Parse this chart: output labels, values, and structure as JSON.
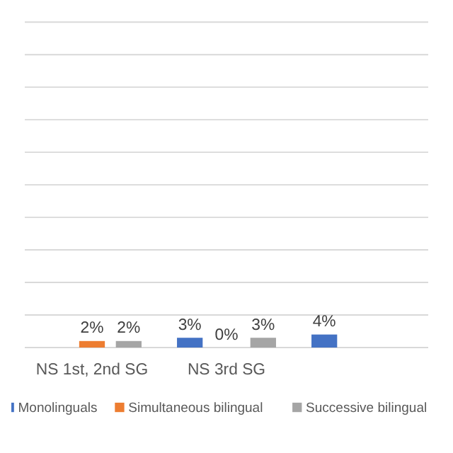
{
  "chart_data": {
    "type": "bar",
    "categories": [
      "NS 1st, 2nd SG",
      "NS 3rd SG",
      null
    ],
    "series": [
      {
        "name": "Monolinguals",
        "color": "#4472c4",
        "values": [
          null,
          3,
          4
        ],
        "value_labels": [
          null,
          "3%",
          "4%"
        ]
      },
      {
        "name": "Simultaneous bilingual",
        "color": "#ed7d31",
        "values": [
          2,
          0,
          null
        ],
        "value_labels": [
          "2%",
          "0%",
          null
        ]
      },
      {
        "name": "Successive bilingual",
        "color": "#a5a5a5",
        "values": [
          2,
          3,
          null
        ],
        "value_labels": [
          "2%",
          "3%",
          null
        ]
      }
    ],
    "ylim": [
      0,
      100
    ],
    "yticks": [
      {
        "value": 0,
        "label": null
      },
      {
        "value": 10,
        "label": null
      },
      {
        "value": 20,
        "label": null
      },
      {
        "value": 30,
        "label": null
      },
      {
        "value": 40,
        "label": null
      },
      {
        "value": 50,
        "label": null
      },
      {
        "value": 60,
        "label": null
      },
      {
        "value": 70,
        "label": null
      },
      {
        "value": 80,
        "label": null
      },
      {
        "value": 90,
        "label": null
      },
      {
        "value": 100,
        "label": null
      }
    ],
    "grid": "y",
    "tick_labels": "x",
    "legend": "bottom"
  }
}
